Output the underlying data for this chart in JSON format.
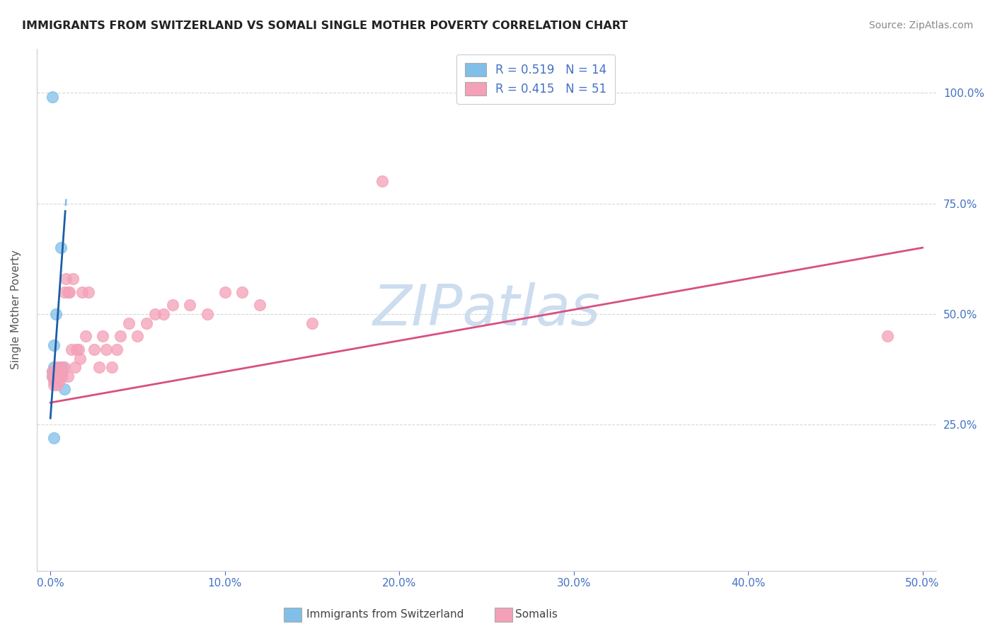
{
  "title": "IMMIGRANTS FROM SWITZERLAND VS SOMALI SINGLE MOTHER POVERTY CORRELATION CHART",
  "source": "Source: ZipAtlas.com",
  "ylabel": "Single Mother Poverty",
  "x_tick_vals": [
    0.0,
    0.1,
    0.2,
    0.3,
    0.4,
    0.5
  ],
  "x_tick_labels": [
    "0.0%",
    "10.0%",
    "20.0%",
    "30.0%",
    "40.0%",
    "50.0%"
  ],
  "y_tick_vals": [
    0.25,
    0.5,
    0.75,
    1.0
  ],
  "y_tick_labels": [
    "25.0%",
    "50.0%",
    "75.0%",
    "100.0%"
  ],
  "xlim": [
    -0.008,
    0.508
  ],
  "ylim": [
    -0.08,
    1.1
  ],
  "blue_color": "#7fbfe8",
  "pink_color": "#f4a0b8",
  "blue_line_color": "#1a5fa8",
  "pink_line_color": "#d94f82",
  "blue_line_dash_color": "#7fbfe8",
  "watermark_text": "ZIPatlas",
  "watermark_color": "#ccddef",
  "background_color": "#ffffff",
  "grid_color": "#d8d8d8",
  "title_color": "#222222",
  "axis_label_color": "#4472c4",
  "ylabel_color": "#555555",
  "source_color": "#888888",
  "legend_r_color": "#000000",
  "legend_n_color": "#4472c4",
  "blue_scatter_x": [
    0.001,
    0.001,
    0.001,
    0.002,
    0.002,
    0.002,
    0.003,
    0.003,
    0.004,
    0.005,
    0.006,
    0.007,
    0.008,
    0.002
  ],
  "blue_scatter_y": [
    0.99,
    0.37,
    0.36,
    0.43,
    0.38,
    0.36,
    0.5,
    0.37,
    0.37,
    0.36,
    0.65,
    0.38,
    0.33,
    0.22
  ],
  "pink_scatter_x": [
    0.001,
    0.001,
    0.002,
    0.002,
    0.003,
    0.003,
    0.003,
    0.004,
    0.004,
    0.005,
    0.005,
    0.006,
    0.006,
    0.007,
    0.007,
    0.008,
    0.008,
    0.009,
    0.01,
    0.01,
    0.011,
    0.012,
    0.013,
    0.014,
    0.015,
    0.016,
    0.017,
    0.018,
    0.02,
    0.022,
    0.025,
    0.028,
    0.03,
    0.032,
    0.035,
    0.038,
    0.04,
    0.045,
    0.05,
    0.055,
    0.06,
    0.065,
    0.07,
    0.08,
    0.09,
    0.1,
    0.11,
    0.12,
    0.15,
    0.19,
    0.48
  ],
  "pink_scatter_y": [
    0.37,
    0.36,
    0.35,
    0.34,
    0.37,
    0.36,
    0.35,
    0.38,
    0.34,
    0.36,
    0.35,
    0.38,
    0.37,
    0.37,
    0.36,
    0.55,
    0.38,
    0.58,
    0.36,
    0.55,
    0.55,
    0.42,
    0.58,
    0.38,
    0.42,
    0.42,
    0.4,
    0.55,
    0.45,
    0.55,
    0.42,
    0.38,
    0.45,
    0.42,
    0.38,
    0.42,
    0.45,
    0.48,
    0.45,
    0.48,
    0.5,
    0.5,
    0.52,
    0.52,
    0.5,
    0.55,
    0.55,
    0.52,
    0.48,
    0.8,
    0.45
  ],
  "bottom_legend_blue": "Immigrants from Switzerland",
  "bottom_legend_pink": "Somalis",
  "legend_r1": "R = 0.519",
  "legend_n1": "N = 14",
  "legend_r2": "R = 0.415",
  "legend_n2": "N = 51"
}
